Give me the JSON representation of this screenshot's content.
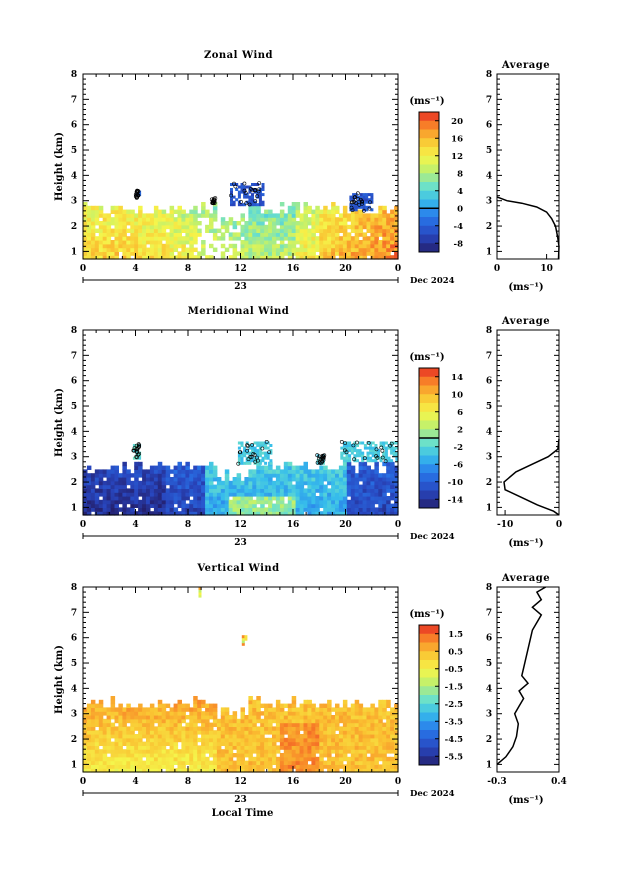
{
  "chart_data": [
    {
      "type": "heatmap",
      "title": "Zonal Wind",
      "ylabel": "Height (km)",
      "xlabel": "",
      "xticks": [
        "0",
        "4",
        "8",
        "12",
        "16",
        "20",
        "0"
      ],
      "yticks": [
        "1",
        "2",
        "3",
        "4",
        "5",
        "6",
        "7",
        "8"
      ],
      "date_label": "23",
      "date_suffix": "Dec 2024",
      "xlim": [
        0,
        24
      ],
      "ylim": [
        0.7,
        8.0
      ],
      "colorbar": {
        "unit": "(ms⁻¹)",
        "ticks": [
          "20",
          "16",
          "12",
          "8",
          "4",
          "0",
          "-4",
          "-8"
        ],
        "range": [
          -10,
          22
        ],
        "contour_level": 0
      },
      "data_top_km": 2.85,
      "isolated_patches": [
        {
          "x": [
            11.2,
            13.6
          ],
          "y": [
            2.8,
            3.7
          ],
          "value": -5
        },
        {
          "x": [
            20.3,
            22.0
          ],
          "y": [
            2.6,
            3.3
          ],
          "value": -5
        },
        {
          "x": [
            4.0,
            4.3
          ],
          "y": [
            3.1,
            3.4
          ],
          "value": -4
        },
        {
          "x": [
            9.8,
            10.1
          ],
          "y": [
            2.9,
            3.1
          ],
          "value": 6
        }
      ],
      "average_profile": {
        "title": "Average",
        "xlabel": "(ms⁻¹)",
        "xticks": [
          "0",
          "10"
        ],
        "xlim": [
          0,
          12.5
        ],
        "ylim": [
          0.7,
          8.0
        ],
        "points": [
          [
            0,
            3.15
          ],
          [
            2,
            3.0
          ],
          [
            5,
            2.9
          ],
          [
            8,
            2.75
          ],
          [
            10,
            2.55
          ],
          [
            11,
            2.3
          ],
          [
            11.8,
            2.0
          ],
          [
            12.2,
            1.6
          ],
          [
            12.5,
            1.2
          ],
          [
            12.4,
            0.7
          ]
        ]
      }
    },
    {
      "type": "heatmap",
      "title": "Meridional Wind",
      "ylabel": "Height (km)",
      "xlabel": "",
      "xticks": [
        "0",
        "4",
        "8",
        "12",
        "16",
        "20",
        "0"
      ],
      "yticks": [
        "1",
        "2",
        "3",
        "4",
        "5",
        "6",
        "7",
        "8"
      ],
      "date_label": "23",
      "date_suffix": "Dec 2024",
      "xlim": [
        0,
        24
      ],
      "ylim": [
        0.7,
        8.0
      ],
      "colorbar": {
        "unit": "(ms⁻¹)",
        "ticks": [
          "14",
          "10",
          "6",
          "2",
          "-2",
          "-6",
          "-10",
          "-14"
        ],
        "range": [
          -16,
          16
        ],
        "contour_level": 0
      },
      "data_top_km": 2.8,
      "isolated_patches": [
        {
          "x": [
            11.8,
            14.2
          ],
          "y": [
            2.7,
            3.6
          ],
          "value": -3
        },
        {
          "x": [
            19.6,
            23.8
          ],
          "y": [
            2.8,
            3.6
          ],
          "value": -3
        },
        {
          "x": [
            3.8,
            4.3
          ],
          "y": [
            2.9,
            3.5
          ],
          "value": -2
        },
        {
          "x": [
            17.8,
            18.4
          ],
          "y": [
            2.7,
            3.1
          ],
          "value": -3
        }
      ],
      "average_profile": {
        "title": "Average",
        "xlabel": "(ms⁻¹)",
        "xticks": [
          "-10",
          "0"
        ],
        "xlim": [
          -11.5,
          0
        ],
        "ylim": [
          0.7,
          8.0
        ],
        "points": [
          [
            0,
            3.7
          ],
          [
            -0.2,
            3.3
          ],
          [
            -2,
            3.0
          ],
          [
            -5,
            2.7
          ],
          [
            -8,
            2.4
          ],
          [
            -10.2,
            2.0
          ],
          [
            -10,
            1.7
          ],
          [
            -7,
            1.4
          ],
          [
            -4,
            1.1
          ],
          [
            -1,
            0.85
          ],
          [
            0,
            0.7
          ]
        ]
      }
    },
    {
      "type": "heatmap",
      "title": "Vertical Wind",
      "ylabel": "Height (km)",
      "xlabel": "Local Time",
      "xticks": [
        "0",
        "4",
        "8",
        "12",
        "16",
        "20",
        "0"
      ],
      "yticks": [
        "1",
        "2",
        "3",
        "4",
        "5",
        "6",
        "7",
        "8"
      ],
      "date_label": "23",
      "date_suffix": "Dec 2024",
      "xlim": [
        0,
        24
      ],
      "ylim": [
        0.7,
        8.0
      ],
      "colorbar": {
        "unit": "(ms⁻¹)",
        "ticks": [
          "1.5",
          "0.5",
          "-0.5",
          "-1.5",
          "-2.5",
          "-3.5",
          "-4.5",
          "-5.5"
        ],
        "range": [
          -6,
          2
        ],
        "contour_level": null
      },
      "data_top_km": 3.6,
      "isolated_patches": [
        {
          "x": [
            8.8,
            9.0
          ],
          "y": [
            7.6,
            7.9
          ],
          "value": 0
        },
        {
          "x": [
            12.1,
            12.3
          ],
          "y": [
            5.7,
            6.0
          ],
          "value": 0
        }
      ],
      "average_profile": {
        "title": "Average",
        "xlabel": "(ms⁻¹)",
        "xticks": [
          "-0.3",
          "0.4"
        ],
        "xlim": [
          -0.3,
          0.4
        ],
        "ylim": [
          0.7,
          8.0
        ],
        "points": [
          [
            -0.3,
            1.0
          ],
          [
            -0.2,
            1.3
          ],
          [
            -0.12,
            1.7
          ],
          [
            -0.08,
            2.1
          ],
          [
            -0.06,
            2.6
          ],
          [
            -0.1,
            3.0
          ],
          [
            -0.05,
            3.3
          ],
          [
            0.0,
            3.6
          ],
          [
            -0.05,
            3.9
          ],
          [
            0.05,
            4.2
          ],
          [
            -0.02,
            4.5
          ],
          [
            0.0,
            4.8
          ],
          [
            0.1,
            6.3
          ],
          [
            0.2,
            6.9
          ],
          [
            0.1,
            7.2
          ],
          [
            0.2,
            7.5
          ],
          [
            0.15,
            7.8
          ],
          [
            0.25,
            8.0
          ]
        ]
      }
    }
  ]
}
